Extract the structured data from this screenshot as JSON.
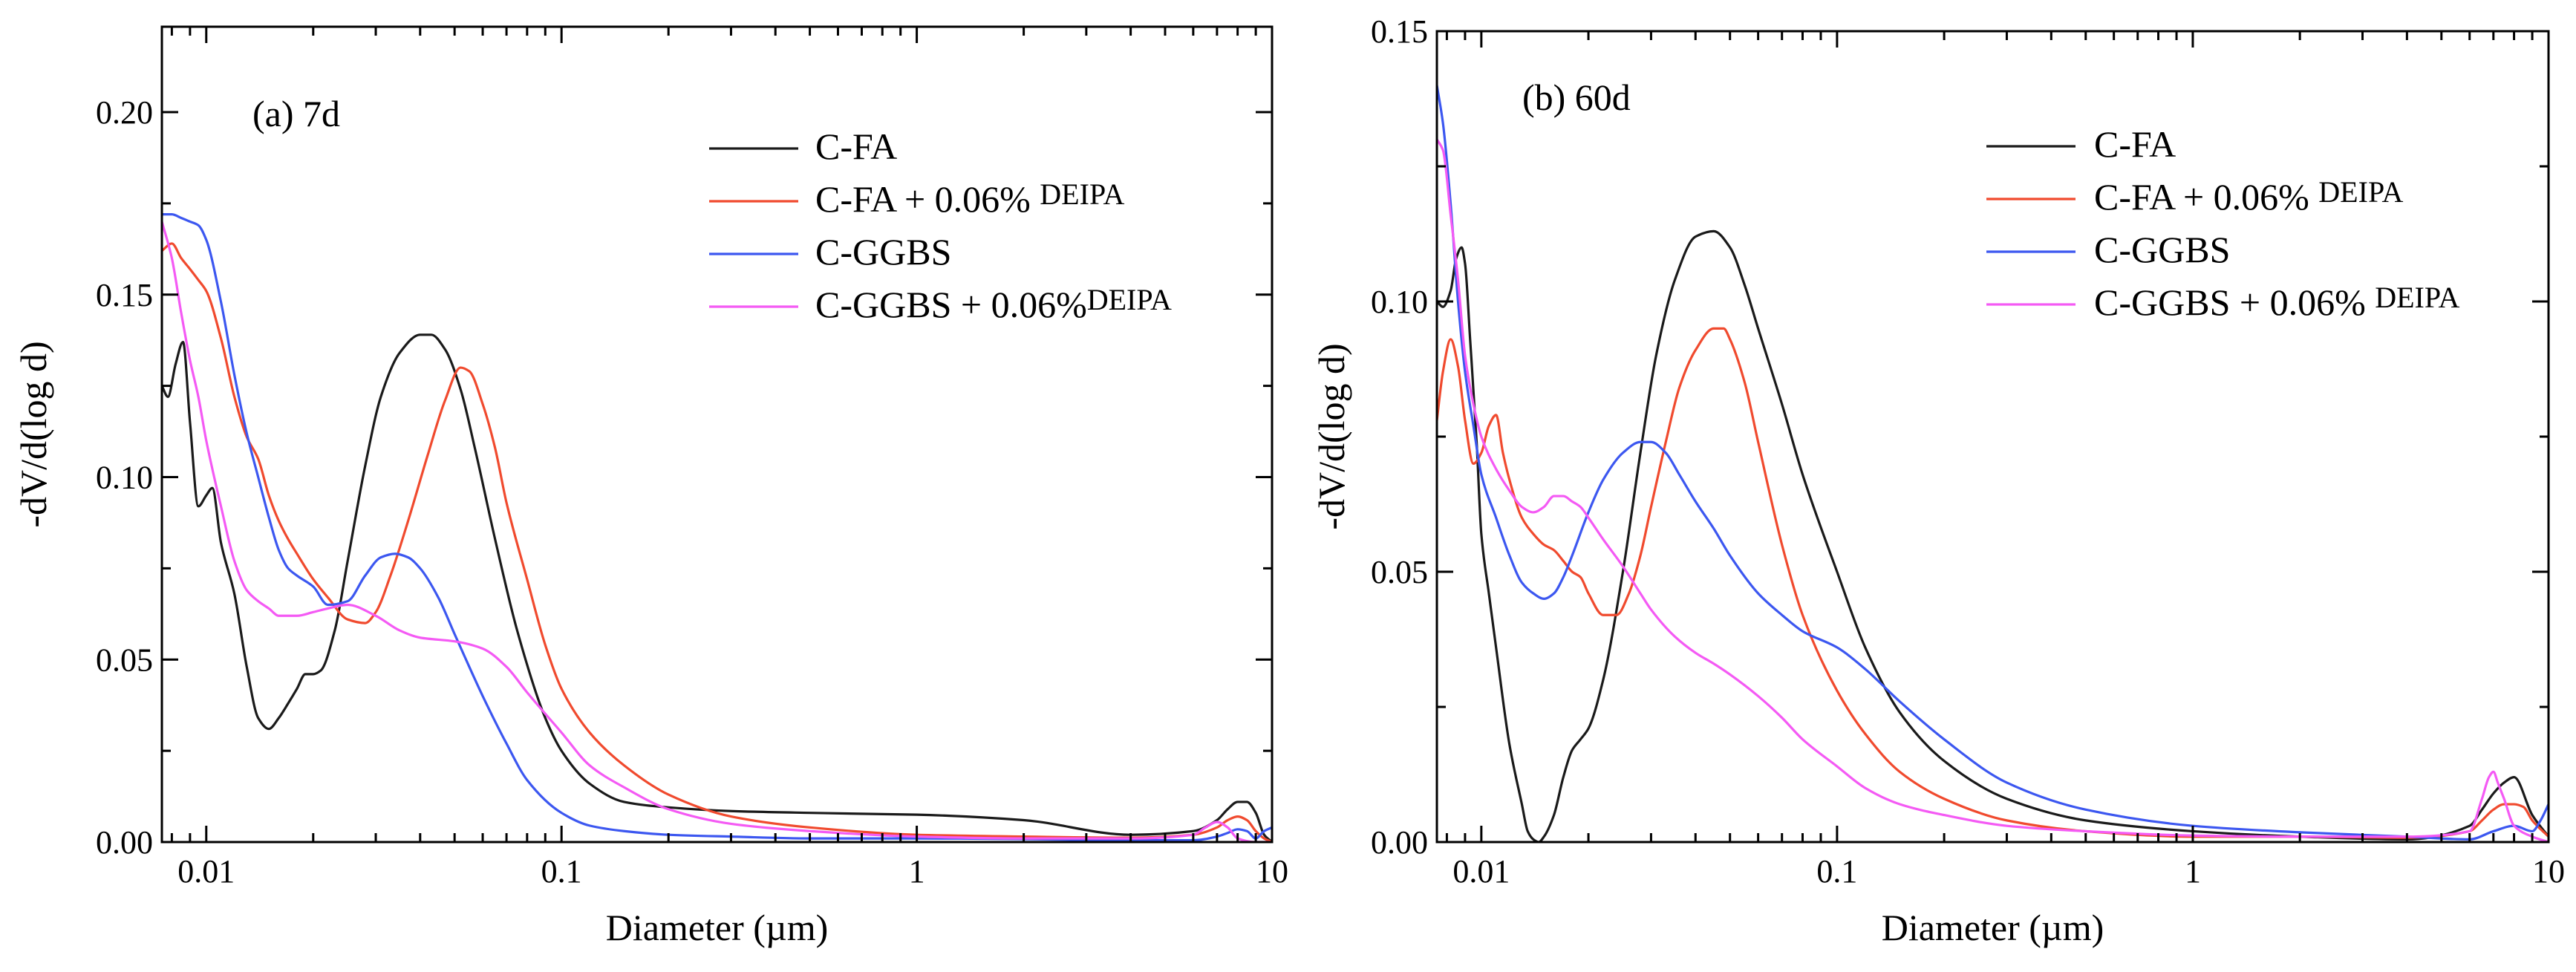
{
  "chart_data": [
    {
      "type": "line",
      "panel_label": "(a) 7d",
      "xlabel": "Diameter (µm)",
      "ylabel": "-dV/d(log d)",
      "xscale": "log",
      "xlim": [
        0.0075,
        10
      ],
      "ylim": [
        0,
        0.2234
      ],
      "x_ticks": [
        {
          "value": 0.01,
          "label": "0.01"
        },
        {
          "value": 0.1,
          "label": "0.1"
        },
        {
          "value": 1,
          "label": "1"
        },
        {
          "value": 10,
          "label": "10"
        }
      ],
      "y_ticks": [
        {
          "value": 0,
          "label": "0.00"
        },
        {
          "value": 0.05,
          "label": "0.05"
        },
        {
          "value": 0.1,
          "label": "0.10"
        },
        {
          "value": 0.15,
          "label": "0.15"
        },
        {
          "value": 0.2,
          "label": "0.20"
        }
      ],
      "legend_position": "top-right",
      "series": [
        {
          "name": "C-FA",
          "name_sup": "",
          "color": "#1a1a1a",
          "x": [
            0.0075,
            0.0078,
            0.0082,
            0.0086,
            0.009,
            0.0095,
            0.01,
            0.0104,
            0.011,
            0.012,
            0.013,
            0.014,
            0.015,
            0.016,
            0.017,
            0.018,
            0.019,
            0.02,
            0.021,
            0.023,
            0.025,
            0.028,
            0.031,
            0.035,
            0.04,
            0.043,
            0.047,
            0.052,
            0.057,
            0.065,
            0.075,
            0.09,
            0.1,
            0.12,
            0.15,
            0.2,
            0.3,
            0.5,
            1,
            2,
            4,
            6,
            7,
            7.5,
            8,
            8.5,
            9,
            9.5,
            10
          ],
          "y": [
            0.125,
            0.122,
            0.131,
            0.137,
            0.115,
            0.092,
            0.095,
            0.097,
            0.082,
            0.068,
            0.048,
            0.034,
            0.031,
            0.034,
            0.038,
            0.042,
            0.046,
            0.046,
            0.047,
            0.058,
            0.077,
            0.103,
            0.122,
            0.134,
            0.139,
            0.139,
            0.135,
            0.124,
            0.108,
            0.083,
            0.058,
            0.034,
            0.025,
            0.016,
            0.011,
            0.0095,
            0.0085,
            0.008,
            0.0075,
            0.006,
            0.002,
            0.003,
            0.006,
            0.009,
            0.011,
            0.011,
            0.008,
            0.002,
            0.0
          ]
        },
        {
          "name": "C-FA + 0.06% ",
          "name_sup": "DEIPA",
          "color": "#f04a2e",
          "x": [
            0.0075,
            0.008,
            0.0085,
            0.009,
            0.0095,
            0.01,
            0.011,
            0.012,
            0.013,
            0.014,
            0.015,
            0.016,
            0.017,
            0.018,
            0.02,
            0.022,
            0.025,
            0.028,
            0.03,
            0.033,
            0.037,
            0.042,
            0.047,
            0.052,
            0.055,
            0.06,
            0.065,
            0.07,
            0.08,
            0.09,
            0.1,
            0.12,
            0.15,
            0.2,
            0.3,
            0.5,
            1,
            2,
            4,
            6,
            7,
            7.5,
            8,
            8.5,
            9,
            9.5,
            10
          ],
          "y": [
            0.162,
            0.164,
            0.16,
            0.157,
            0.154,
            0.151,
            0.138,
            0.122,
            0.111,
            0.105,
            0.095,
            0.088,
            0.083,
            0.079,
            0.072,
            0.067,
            0.061,
            0.06,
            0.063,
            0.073,
            0.088,
            0.106,
            0.121,
            0.13,
            0.129,
            0.12,
            0.108,
            0.093,
            0.072,
            0.054,
            0.042,
            0.03,
            0.021,
            0.013,
            0.007,
            0.004,
            0.002,
            0.0015,
            0.0012,
            0.002,
            0.004,
            0.006,
            0.007,
            0.006,
            0.003,
            0.001,
            0.0
          ]
        },
        {
          "name": "C-GGBS",
          "name_sup": "",
          "color": "#3c57f0",
          "x": [
            0.0075,
            0.008,
            0.0085,
            0.009,
            0.0095,
            0.01,
            0.011,
            0.012,
            0.013,
            0.014,
            0.015,
            0.016,
            0.017,
            0.018,
            0.02,
            0.022,
            0.025,
            0.028,
            0.031,
            0.034,
            0.037,
            0.04,
            0.045,
            0.05,
            0.055,
            0.06,
            0.07,
            0.08,
            0.1,
            0.12,
            0.15,
            0.2,
            0.3,
            0.5,
            1,
            2,
            4,
            6,
            7,
            7.5,
            8,
            8.5,
            9,
            9.5,
            10
          ],
          "y": [
            0.172,
            0.172,
            0.171,
            0.17,
            0.169,
            0.165,
            0.148,
            0.128,
            0.112,
            0.1,
            0.089,
            0.08,
            0.075,
            0.073,
            0.07,
            0.065,
            0.066,
            0.073,
            0.078,
            0.079,
            0.078,
            0.075,
            0.067,
            0.057,
            0.048,
            0.04,
            0.027,
            0.017,
            0.008,
            0.0045,
            0.003,
            0.002,
            0.0015,
            0.001,
            0.001,
            0.0008,
            0.0005,
            0.0005,
            0.0015,
            0.0025,
            0.0035,
            0.003,
            0.001,
            0.003,
            0.004
          ]
        },
        {
          "name": "C-GGBS + 0.06%",
          "name_sup": "DEIPA",
          "color": "#f45af4",
          "x": [
            0.0075,
            0.008,
            0.0085,
            0.009,
            0.0095,
            0.01,
            0.011,
            0.012,
            0.013,
            0.014,
            0.015,
            0.016,
            0.017,
            0.018,
            0.02,
            0.022,
            0.025,
            0.03,
            0.035,
            0.04,
            0.05,
            0.06,
            0.07,
            0.08,
            0.1,
            0.12,
            0.15,
            0.2,
            0.3,
            0.5,
            1,
            2,
            4,
            6,
            6.5,
            7,
            7.5,
            8,
            9,
            10
          ],
          "y": [
            0.17,
            0.16,
            0.145,
            0.132,
            0.122,
            0.11,
            0.092,
            0.077,
            0.069,
            0.066,
            0.064,
            0.062,
            0.062,
            0.062,
            0.063,
            0.064,
            0.065,
            0.062,
            0.058,
            0.056,
            0.055,
            0.053,
            0.048,
            0.041,
            0.03,
            0.021,
            0.015,
            0.009,
            0.005,
            0.003,
            0.0015,
            0.001,
            0.001,
            0.002,
            0.004,
            0.0055,
            0.004,
            0.001,
            0.0,
            0.0
          ]
        }
      ]
    },
    {
      "type": "line",
      "panel_label": "(b) 60d",
      "xlabel": "Diameter (µm)",
      "ylabel": "-dV/d(log d)",
      "xscale": "log",
      "xlim": [
        0.0075,
        10
      ],
      "ylim": [
        0,
        0.15
      ],
      "x_ticks": [
        {
          "value": 0.01,
          "label": "0.01"
        },
        {
          "value": 0.1,
          "label": "0.1"
        },
        {
          "value": 1,
          "label": "1"
        },
        {
          "value": 10,
          "label": "10"
        }
      ],
      "y_ticks": [
        {
          "value": 0,
          "label": "0.00"
        },
        {
          "value": 0.05,
          "label": "0.05"
        },
        {
          "value": 0.1,
          "label": "0.10"
        },
        {
          "value": 0.15,
          "label": "0.15"
        }
      ],
      "legend_position": "top-right",
      "series": [
        {
          "name": "C-FA",
          "name_sup": "",
          "color": "#1a1a1a",
          "x": [
            0.0075,
            0.0078,
            0.0082,
            0.0085,
            0.0088,
            0.009,
            0.0093,
            0.0097,
            0.01,
            0.0105,
            0.011,
            0.012,
            0.013,
            0.0135,
            0.014,
            0.0145,
            0.015,
            0.016,
            0.017,
            0.018,
            0.019,
            0.02,
            0.022,
            0.025,
            0.028,
            0.031,
            0.035,
            0.04,
            0.045,
            0.05,
            0.055,
            0.06,
            0.07,
            0.08,
            0.1,
            0.12,
            0.15,
            0.2,
            0.3,
            0.5,
            1,
            2,
            4,
            6,
            6.5,
            7,
            7.5,
            8,
            9,
            10
          ],
          "y": [
            0.1,
            0.099,
            0.102,
            0.108,
            0.11,
            0.107,
            0.093,
            0.074,
            0.057,
            0.046,
            0.036,
            0.018,
            0.007,
            0.002,
            0.0005,
            0.0,
            0.001,
            0.005,
            0.012,
            0.017,
            0.019,
            0.021,
            0.03,
            0.05,
            0.072,
            0.09,
            0.104,
            0.112,
            0.113,
            0.11,
            0.103,
            0.095,
            0.081,
            0.068,
            0.05,
            0.036,
            0.024,
            0.015,
            0.008,
            0.004,
            0.002,
            0.001,
            0.0005,
            0.003,
            0.006,
            0.009,
            0.011,
            0.012,
            0.005,
            0.001
          ]
        },
        {
          "name": "C-FA + 0.06% ",
          "name_sup": "DEIPA",
          "color": "#f04a2e",
          "x": [
            0.0075,
            0.0078,
            0.0082,
            0.0086,
            0.009,
            0.0095,
            0.01,
            0.0105,
            0.011,
            0.0115,
            0.012,
            0.013,
            0.014,
            0.015,
            0.016,
            0.017,
            0.018,
            0.019,
            0.02,
            0.022,
            0.024,
            0.026,
            0.028,
            0.03,
            0.033,
            0.036,
            0.04,
            0.045,
            0.048,
            0.05,
            0.055,
            0.06,
            0.07,
            0.08,
            0.1,
            0.12,
            0.15,
            0.2,
            0.3,
            0.5,
            1,
            2,
            4,
            6,
            6.5,
            7,
            7.5,
            8,
            8.5,
            9,
            10
          ],
          "y": [
            0.078,
            0.087,
            0.093,
            0.088,
            0.078,
            0.07,
            0.072,
            0.077,
            0.079,
            0.072,
            0.067,
            0.06,
            0.057,
            0.055,
            0.054,
            0.052,
            0.05,
            0.049,
            0.046,
            0.042,
            0.042,
            0.046,
            0.053,
            0.062,
            0.074,
            0.084,
            0.091,
            0.095,
            0.095,
            0.093,
            0.085,
            0.074,
            0.055,
            0.042,
            0.028,
            0.02,
            0.013,
            0.008,
            0.004,
            0.002,
            0.001,
            0.001,
            0.0008,
            0.002,
            0.004,
            0.006,
            0.007,
            0.007,
            0.0065,
            0.004,
            0.001
          ]
        },
        {
          "name": "C-GGBS",
          "name_sup": "",
          "color": "#3c57f0",
          "x": [
            0.0075,
            0.0078,
            0.0082,
            0.0086,
            0.009,
            0.0095,
            0.01,
            0.011,
            0.012,
            0.013,
            0.014,
            0.015,
            0.016,
            0.017,
            0.018,
            0.02,
            0.022,
            0.025,
            0.028,
            0.03,
            0.033,
            0.036,
            0.04,
            0.045,
            0.05,
            0.06,
            0.07,
            0.08,
            0.1,
            0.12,
            0.15,
            0.2,
            0.3,
            0.5,
            1,
            2,
            4,
            6,
            7,
            8,
            9,
            9.5,
            10
          ],
          "y": [
            0.14,
            0.133,
            0.118,
            0.1,
            0.087,
            0.077,
            0.068,
            0.06,
            0.053,
            0.048,
            0.046,
            0.045,
            0.046,
            0.049,
            0.053,
            0.061,
            0.067,
            0.072,
            0.074,
            0.074,
            0.072,
            0.068,
            0.063,
            0.058,
            0.053,
            0.046,
            0.042,
            0.039,
            0.036,
            0.032,
            0.026,
            0.019,
            0.011,
            0.006,
            0.003,
            0.0018,
            0.001,
            0.0005,
            0.002,
            0.003,
            0.002,
            0.004,
            0.007
          ]
        },
        {
          "name": "C-GGBS + 0.06% ",
          "name_sup": "DEIPA",
          "color": "#f45af4",
          "x": [
            0.0075,
            0.0078,
            0.0082,
            0.0086,
            0.009,
            0.0095,
            0.01,
            0.011,
            0.012,
            0.013,
            0.014,
            0.015,
            0.016,
            0.017,
            0.018,
            0.019,
            0.02,
            0.022,
            0.025,
            0.028,
            0.03,
            0.035,
            0.04,
            0.045,
            0.05,
            0.06,
            0.07,
            0.08,
            0.1,
            0.12,
            0.15,
            0.2,
            0.3,
            0.5,
            1,
            2,
            4,
            6,
            6.5,
            6.8,
            7,
            7.2,
            7.5,
            8,
            9,
            10
          ],
          "y": [
            0.13,
            0.128,
            0.116,
            0.104,
            0.09,
            0.081,
            0.075,
            0.069,
            0.065,
            0.062,
            0.061,
            0.062,
            0.064,
            0.064,
            0.063,
            0.062,
            0.06,
            0.056,
            0.051,
            0.046,
            0.043,
            0.038,
            0.035,
            0.033,
            0.031,
            0.027,
            0.023,
            0.019,
            0.014,
            0.01,
            0.007,
            0.005,
            0.003,
            0.002,
            0.0012,
            0.001,
            0.001,
            0.002,
            0.008,
            0.012,
            0.013,
            0.011,
            0.008,
            0.003,
            0.001,
            0.0
          ]
        }
      ]
    }
  ]
}
